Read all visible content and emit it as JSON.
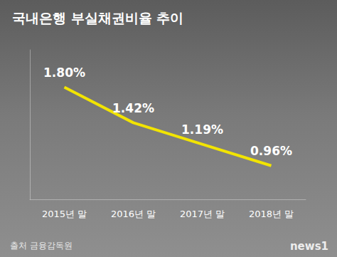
{
  "chart_data": {
    "type": "line",
    "title": "국내은행 부실채권비율 추이",
    "categories": [
      "2015년 말",
      "2016년 말",
      "2017년 말",
      "2018년 말"
    ],
    "values": [
      1.8,
      1.42,
      1.19,
      0.96
    ],
    "value_labels": [
      "1.80%",
      "1.42%",
      "1.19%",
      "0.96%"
    ],
    "color": "#f2e400",
    "ylim": [
      0.6,
      2.2
    ],
    "yticks": [],
    "grid": false,
    "data_labels": true,
    "tick_labels": "x",
    "source": "출처 금융감독원",
    "watermark": "news1"
  }
}
